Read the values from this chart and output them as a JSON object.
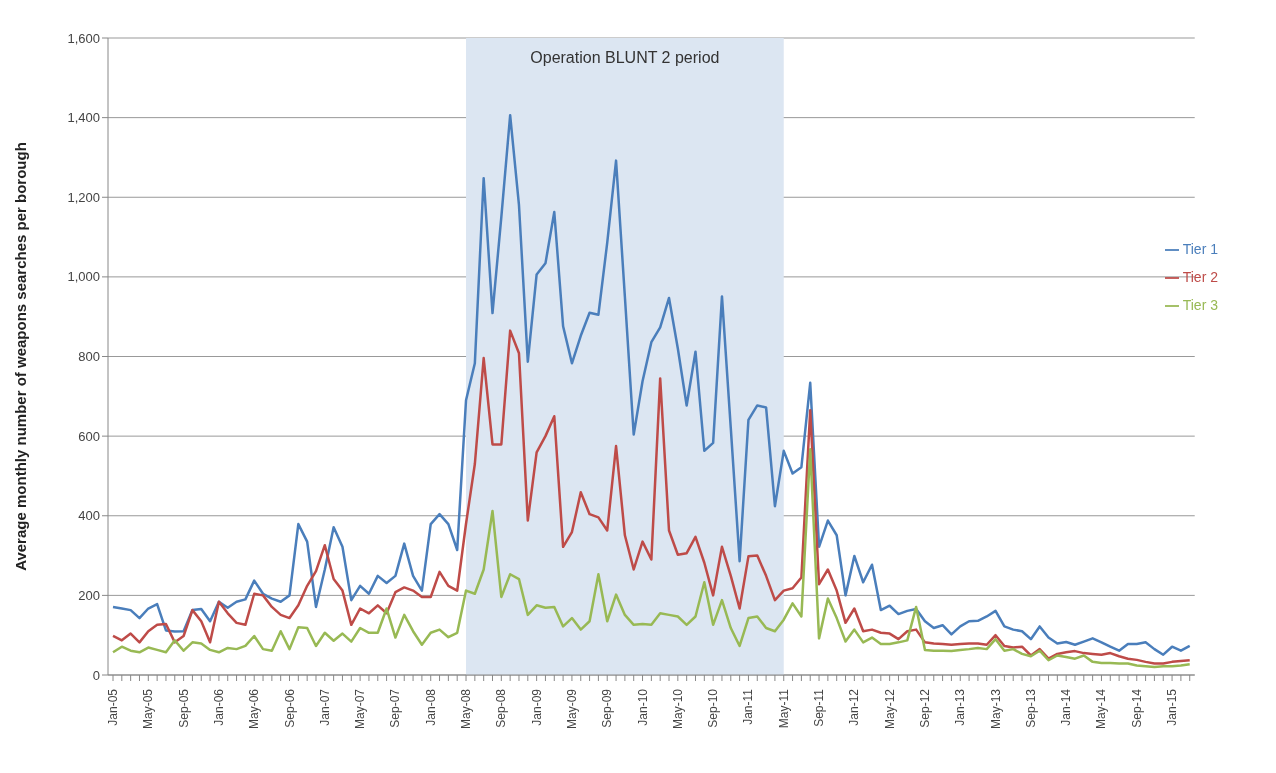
{
  "chart_data": {
    "type": "line",
    "ylabel": "Average monthly number of  weapons searches per borough",
    "categories": [
      "Jan-05",
      null,
      null,
      null,
      "May-05",
      null,
      null,
      null,
      "Sep-05",
      null,
      null,
      null,
      "Jan-06",
      null,
      null,
      null,
      "May-06",
      null,
      null,
      null,
      "Sep-06",
      null,
      null,
      null,
      "Jan-07",
      null,
      null,
      null,
      "May-07",
      null,
      null,
      null,
      "Sep-07",
      null,
      null,
      null,
      "Jan-08",
      null,
      null,
      null,
      "May-08",
      null,
      null,
      null,
      "Sep-08",
      null,
      null,
      null,
      "Jan-09",
      null,
      null,
      null,
      "May-09",
      null,
      null,
      null,
      "Sep-09",
      null,
      null,
      null,
      "Jan-10",
      null,
      null,
      null,
      "May-10",
      null,
      null,
      null,
      "Sep-10",
      null,
      null,
      null,
      "Jan-11",
      null,
      null,
      null,
      "May-11",
      null,
      null,
      null,
      "Sep-11",
      null,
      null,
      null,
      "Jan-12",
      null,
      null,
      null,
      "May-12",
      null,
      null,
      null,
      "Sep-12",
      null,
      null,
      null,
      "Jan-13",
      null,
      null,
      null,
      "May-13",
      null,
      null,
      null,
      "Sep-13",
      null,
      null,
      null,
      "Jan-14",
      null,
      null,
      null,
      "May-14",
      null,
      null,
      null,
      "Sep-14",
      null,
      null,
      null,
      "Jan-15",
      null,
      null
    ],
    "series": [
      {
        "name": "Tier 1",
        "color": "#4a7ebb",
        "values": [
          171,
          167,
          163,
          143,
          167,
          178,
          112,
          109,
          110,
          163,
          166,
          135,
          184,
          169,
          184,
          190,
          237,
          204,
          192,
          184,
          200,
          379,
          335,
          171,
          265,
          371,
          322,
          188,
          224,
          204,
          249,
          231,
          249,
          330,
          249,
          212,
          379,
          404,
          379,
          314,
          690,
          783,
          1248,
          909,
          1150,
          1406,
          1180,
          787,
          1006,
          1034,
          1163,
          876,
          783,
          852,
          910,
          905,
          1086,
          1292,
          950,
          604,
          738,
          836,
          873,
          947,
          820,
          677,
          812,
          563,
          583,
          951,
          620,
          286,
          641,
          677,
          672,
          424,
          563,
          506,
          522,
          734,
          322,
          388,
          351,
          200,
          299,
          233,
          277,
          163,
          174,
          153,
          161,
          166,
          135,
          118,
          125,
          102,
          122,
          135,
          136,
          147,
          161,
          122,
          114,
          110,
          90,
          122,
          94,
          79,
          83,
          76,
          84,
          92,
          82,
          71,
          61,
          78,
          78,
          82,
          65,
          51,
          71,
          61,
          73
        ]
      },
      {
        "name": "Tier 2",
        "color": "#be4b48",
        "values": [
          98,
          87,
          104,
          82,
          110,
          126,
          128,
          82,
          98,
          163,
          135,
          82,
          184,
          155,
          131,
          126,
          204,
          200,
          171,
          151,
          143,
          175,
          224,
          261,
          326,
          241,
          212,
          126,
          167,
          155,
          175,
          155,
          208,
          220,
          212,
          196,
          196,
          259,
          224,
          212,
          380,
          530,
          796,
          579,
          579,
          865,
          808,
          388,
          559,
          600,
          650,
          322,
          359,
          459,
          404,
          396,
          363,
          575,
          351,
          265,
          335,
          290,
          745,
          363,
          302,
          306,
          347,
          282,
          200,
          322,
          249,
          167,
          298,
          300,
          249,
          188,
          212,
          218,
          245,
          665,
          228,
          265,
          212,
          131,
          167,
          110,
          114,
          106,
          104,
          90,
          110,
          114,
          82,
          79,
          78,
          76,
          78,
          79,
          79,
          76,
          100,
          73,
          69,
          71,
          49,
          65,
          41,
          53,
          57,
          60,
          55,
          53,
          51,
          55,
          47,
          41,
          38,
          33,
          29,
          29,
          33,
          35,
          37
        ]
      },
      {
        "name": "Tier 3",
        "color": "#98b954",
        "values": [
          57,
          71,
          61,
          57,
          69,
          63,
          57,
          87,
          61,
          82,
          79,
          63,
          57,
          68,
          65,
          73,
          98,
          65,
          61,
          110,
          65,
          120,
          118,
          73,
          106,
          86,
          104,
          84,
          118,
          106,
          106,
          167,
          94,
          151,
          110,
          76,
          106,
          114,
          95,
          106,
          212,
          204,
          265,
          412,
          196,
          253,
          241,
          151,
          175,
          169,
          171,
          122,
          143,
          114,
          135,
          253,
          135,
          202,
          151,
          126,
          128,
          126,
          155,
          151,
          147,
          126,
          147,
          233,
          126,
          188,
          118,
          73,
          143,
          147,
          118,
          110,
          139,
          180,
          147,
          567,
          92,
          192,
          143,
          84,
          114,
          82,
          94,
          78,
          78,
          82,
          87,
          171,
          63,
          61,
          61,
          60,
          63,
          65,
          68,
          65,
          90,
          61,
          65,
          53,
          47,
          61,
          37,
          49,
          45,
          41,
          49,
          33,
          30,
          30,
          29,
          29,
          24,
          22,
          20,
          22,
          22,
          24,
          27
        ]
      }
    ],
    "ylim": [
      0,
      1600
    ],
    "yticks": [
      0,
      {
        "value": 200,
        "label": "200"
      },
      {
        "value": 400,
        "label": "400"
      },
      {
        "value": 600,
        "label": "600"
      },
      {
        "value": 800,
        "label": "800"
      },
      {
        "value": 1000,
        "label": "1,000"
      },
      {
        "value": 1200,
        "label": "1,200"
      },
      {
        "value": 1400,
        "label": "1,400"
      },
      {
        "value": 1600,
        "label": "1,600"
      }
    ],
    "grid": "y",
    "legend": "right",
    "marker": "none",
    "line_style": "solid",
    "bands": [
      {
        "axis": "x",
        "from": "May-08",
        "to": "May-11",
        "label": "Operation BLUNT 2 period",
        "color": "#dce6f2"
      }
    ]
  }
}
